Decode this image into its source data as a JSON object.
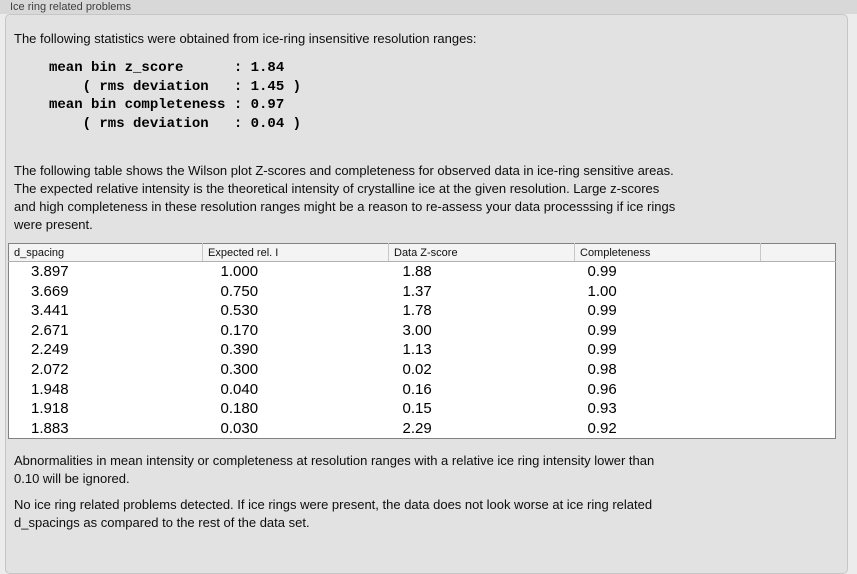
{
  "window": {
    "title": "Ice ring related problems"
  },
  "panel": {
    "intro": "The following statistics were obtained from ice-ring insensitive resolution ranges:",
    "stats_block": [
      "mean bin z_score      : 1.84",
      "    ( rms deviation   : 1.45 )",
      "mean bin completeness : 0.97",
      "    ( rms deviation   : 0.04 )"
    ],
    "table_description": [
      "The following table shows the Wilson plot Z-scores and completeness for observed data in ice-ring sensitive areas.",
      "The expected relative intensity is the theoretical intensity of crystalline ice at the given resolution. Large z-scores",
      "and high completeness in these resolution ranges might be a reason to re-assess your data processsing if ice rings",
      "were present."
    ],
    "table": {
      "columns": [
        "d_spacing",
        "Expected rel. I",
        "Data Z-score",
        "Completeness",
        ""
      ],
      "rows": [
        [
          "3.897",
          "1.000",
          "1.88",
          "0.99"
        ],
        [
          "3.669",
          "0.750",
          "1.37",
          "1.00"
        ],
        [
          "3.441",
          "0.530",
          "1.78",
          "0.99"
        ],
        [
          "2.671",
          "0.170",
          "3.00",
          "0.99"
        ],
        [
          "2.249",
          "0.390",
          "1.13",
          "0.99"
        ],
        [
          "2.072",
          "0.300",
          "0.02",
          "0.98"
        ],
        [
          "1.948",
          "0.040",
          "0.16",
          "0.96"
        ],
        [
          "1.918",
          "0.180",
          "0.15",
          "0.93"
        ],
        [
          "1.883",
          "0.030",
          "2.29",
          "0.92"
        ]
      ]
    },
    "abnormalities_note": [
      "Abnormalities in mean intensity or completeness at resolution ranges with a relative ice ring intensity lower than",
      "0.10 will be ignored."
    ],
    "conclusion": [
      "No ice ring related problems detected. If ice rings were present, the data does not look worse at ice ring related",
      "d_spacings as compared to the rest of the data set."
    ]
  },
  "colors": {
    "panel_background": "#e2e2e2",
    "title_strip": "#d8d8d8",
    "table_background": "#ffffff",
    "table_border": "#828282"
  }
}
